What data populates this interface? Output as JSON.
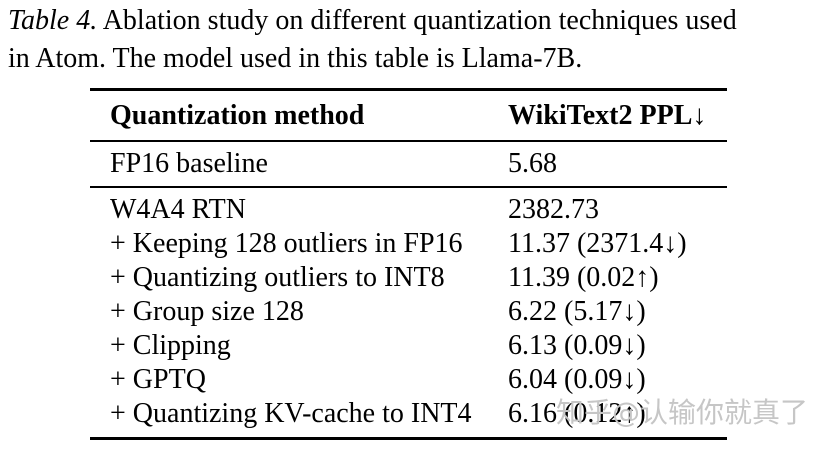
{
  "caption": {
    "label": "Table 4.",
    "line1_rest": "Ablation study on different quantization techniques used",
    "line2": "in Atom. The model used in this table is Llama-7B."
  },
  "table": {
    "columns": [
      "Quantization method",
      "WikiText2 PPL↓"
    ],
    "baseline_row": {
      "method": "FP16 baseline",
      "ppl": "5.68"
    },
    "rows": [
      {
        "method": "W4A4 RTN",
        "ppl": "2382.73"
      },
      {
        "method": "+ Keeping 128 outliers in FP16",
        "ppl": "11.37 (2371.4↓)"
      },
      {
        "method": "+ Quantizing outliers to INT8",
        "ppl": "11.39 (0.02↑)"
      },
      {
        "method": "+ Group size 128",
        "ppl": "6.22 (5.17↓)"
      },
      {
        "method": "+ Clipping",
        "ppl": "6.13 (0.09↓)"
      },
      {
        "method": "+ GPTQ",
        "ppl": "6.04 (0.09↓)"
      },
      {
        "method": "+ Quantizing KV-cache to INT4",
        "ppl": "6.16 (0.12↑)"
      }
    ]
  },
  "watermark": {
    "text": "知乎@认输你就真了"
  },
  "colors": {
    "background": "#ffffff",
    "text": "#000000",
    "rule": "#000000",
    "watermark": "#c6c6c6"
  }
}
